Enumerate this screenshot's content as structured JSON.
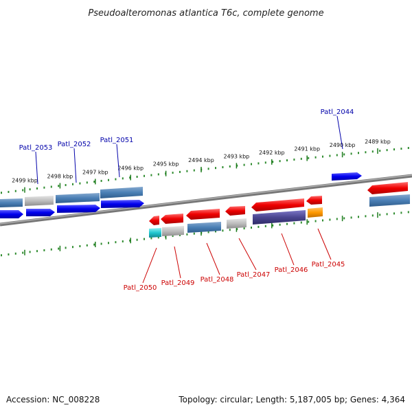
{
  "title": "Pseudoalteromonas atlantica T6c, complete genome",
  "footer": {
    "accession": "Accession: NC_008228",
    "summary": "Topology: circular; Length: 5,187,005 bp; Genes: 4,364"
  },
  "colors": {
    "backbone": "#777777",
    "major_tick": "#1a7a1a",
    "minor_tick": "#2e8b2e",
    "forward_label": "#0000aa",
    "reverse_label": "#cc0000"
  },
  "ticks": [
    "2499 kbp",
    "2498 kbp",
    "2497 kbp",
    "2496 kbp",
    "2495 kbp",
    "2494 kbp",
    "2493 kbp",
    "2492 kbp",
    "2491 kbp",
    "2490 kbp",
    "2489 kbp"
  ],
  "forward_genes": [
    {
      "label": "Patl_2053"
    },
    {
      "label": "Patl_2052"
    },
    {
      "label": "Patl_2051"
    },
    {
      "label": "Patl_2044"
    }
  ],
  "reverse_genes": [
    {
      "label": "Patl_2050"
    },
    {
      "label": "Patl_2049"
    },
    {
      "label": "Patl_2048"
    },
    {
      "label": "Patl_2047"
    },
    {
      "label": "Patl_2046"
    },
    {
      "label": "Patl_2045"
    }
  ]
}
